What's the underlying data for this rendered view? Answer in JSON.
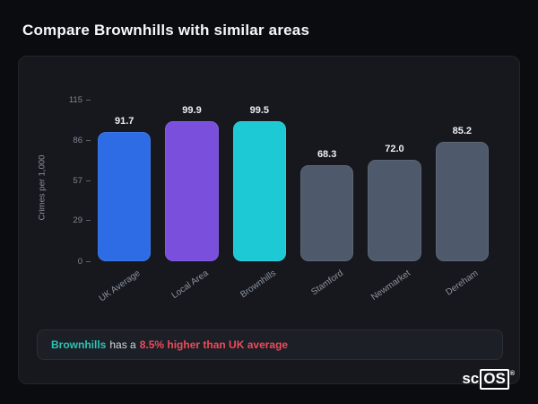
{
  "title": "Compare Brownhills with similar areas",
  "chart_data": {
    "type": "bar",
    "categories": [
      "UK Average",
      "Local Area",
      "Brownhills",
      "Stamford",
      "Newmarket",
      "Dereham"
    ],
    "values": [
      91.7,
      99.9,
      99.5,
      68.3,
      72.0,
      85.2
    ],
    "value_labels": [
      "91.7",
      "99.9",
      "99.5",
      "68.3",
      "72.0",
      "85.2"
    ],
    "bar_colors": [
      "#2e6ce5",
      "#7a4fdc",
      "#1ec9d6",
      "#4e5a6b",
      "#4e5a6b",
      "#4e5a6b"
    ],
    "title": "",
    "xlabel": "",
    "ylabel": "Crimes per 1,000",
    "ylim": [
      0,
      115
    ],
    "yticks": [
      0,
      29,
      57,
      86,
      115
    ],
    "grid": false,
    "legend": false
  },
  "note": {
    "area": "Brownhills",
    "middle": "has a",
    "highlight": "8.5% higher than UK average"
  },
  "brand": {
    "prefix": "sc",
    "boxed": "OS",
    "mark": "®"
  }
}
